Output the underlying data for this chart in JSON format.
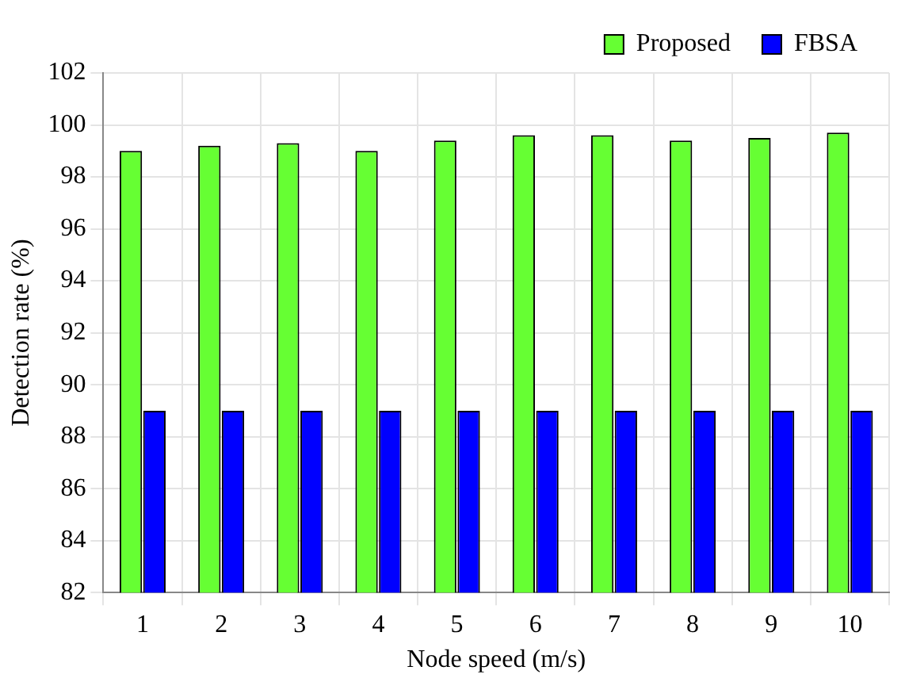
{
  "chart_data": {
    "type": "bar",
    "xlabel": "Node speed (m/s)",
    "ylabel": "Detection rate (%)",
    "categories": [
      "1",
      "2",
      "3",
      "4",
      "5",
      "6",
      "7",
      "8",
      "9",
      "10"
    ],
    "series": [
      {
        "name": "Proposed",
        "color": "#66ff33",
        "values": [
          99.0,
          99.2,
          99.3,
          99.0,
          99.4,
          99.6,
          99.6,
          99.4,
          99.5,
          99.7
        ]
      },
      {
        "name": "FBSA",
        "color": "#0000ff",
        "values": [
          89,
          89,
          89,
          89,
          89,
          89,
          89,
          89,
          89,
          89
        ]
      }
    ],
    "ylim": [
      82,
      102
    ],
    "yticks": [
      82,
      84,
      86,
      88,
      90,
      92,
      94,
      96,
      98,
      100,
      102
    ],
    "grid": true,
    "legend": "top right"
  }
}
